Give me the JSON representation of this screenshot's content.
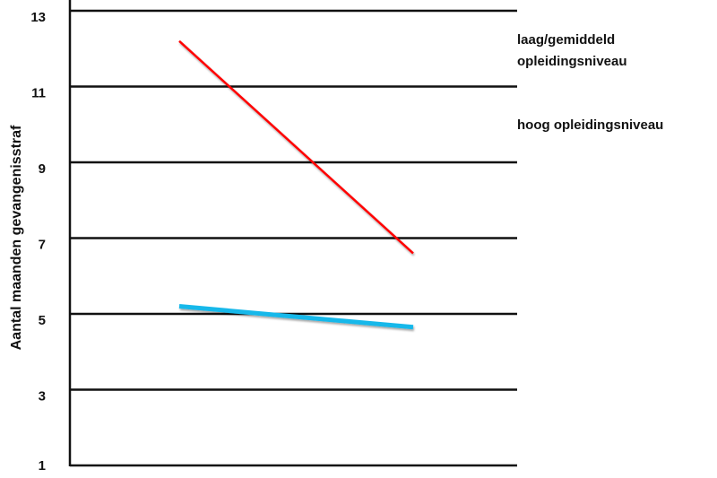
{
  "chart_data": {
    "type": "line",
    "title": "",
    "xlabel": "",
    "ylabel": "Aantal maanden gevangenisstraf",
    "ylim": [
      1,
      13
    ],
    "yticks": [
      "1",
      "3",
      "5",
      "7",
      "9",
      "11",
      "13"
    ],
    "grid": true,
    "legend_position": "top-right",
    "series": [
      {
        "name": "laag/gemiddeld opleidingsniveau",
        "name_lines": [
          "laag/gemiddeld",
          "opleidingsniveau"
        ],
        "color": "#ff0000",
        "values": [
          12.2,
          6.6
        ]
      },
      {
        "name": "hoog opleidingsniveau",
        "name_lines": [
          "hoog opleidingsniveau"
        ],
        "color": "#19b8ea",
        "values": [
          5.2,
          4.65
        ]
      }
    ]
  }
}
